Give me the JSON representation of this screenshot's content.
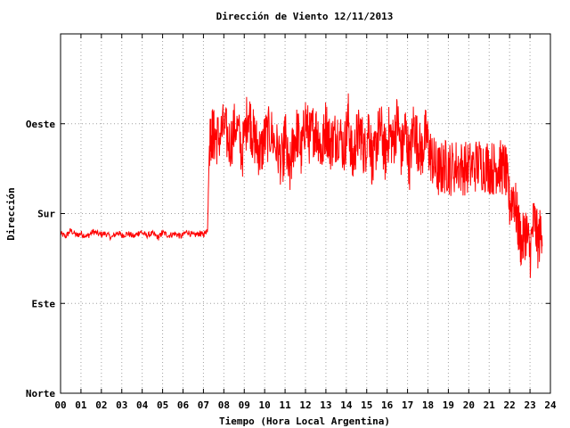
{
  "chart_data": {
    "type": "line",
    "title": "Dirección de Viento 12/11/2013",
    "xlabel": "Tiempo (Hora Local Argentina)",
    "ylabel": "Dirección",
    "x_ticks": [
      "00",
      "01",
      "02",
      "03",
      "04",
      "05",
      "06",
      "07",
      "08",
      "09",
      "10",
      "11",
      "12",
      "13",
      "14",
      "15",
      "16",
      "17",
      "18",
      "19",
      "20",
      "21",
      "22",
      "23",
      "24"
    ],
    "xlim": [
      0,
      24
    ],
    "y_ticks": [
      {
        "label": "Norte",
        "value": 0
      },
      {
        "label": "Este",
        "value": 90
      },
      {
        "label": "Sur",
        "value": 180
      },
      {
        "label": "Oeste",
        "value": 270
      }
    ],
    "ylim": [
      0,
      360
    ],
    "grid": true,
    "legend": "none",
    "series": [
      {
        "color": "#ff0000",
        "x": [
          0.0,
          0.25,
          0.5,
          0.8,
          1.0,
          1.3,
          1.6,
          1.9,
          2.2,
          2.5,
          2.8,
          3.0,
          3.3,
          3.6,
          3.9,
          4.2,
          4.5,
          4.8,
          5.0,
          5.3,
          5.6,
          5.9,
          6.2,
          6.5,
          6.8,
          7.0,
          7.2,
          7.3,
          7.4,
          7.5,
          7.7,
          8.0,
          8.3,
          8.6,
          8.9,
          9.2,
          9.4,
          9.6,
          9.8,
          10.0,
          10.3,
          10.6,
          10.9,
          11.0,
          11.2,
          11.4,
          11.6,
          11.8,
          12.0,
          12.2,
          12.4,
          12.6,
          12.8,
          13.0,
          13.2,
          13.4,
          13.6,
          13.9,
          14.1,
          14.3,
          14.5,
          14.7,
          14.9,
          15.1,
          15.3,
          15.5,
          15.7,
          15.9,
          16.1,
          16.3,
          16.5,
          16.7,
          16.9,
          17.1,
          17.3,
          17.5,
          17.7,
          17.9,
          18.1,
          18.3,
          18.5,
          18.7,
          18.9,
          19.1,
          19.4,
          19.7,
          20.0,
          20.3,
          20.6,
          20.9,
          21.2,
          21.4,
          21.6,
          21.8,
          22.0,
          22.2,
          22.4,
          22.6,
          22.8,
          23.0,
          23.2,
          23.4,
          23.6
        ],
        "y": [
          160,
          157,
          163,
          158,
          160,
          157,
          162,
          159,
          160,
          156,
          161,
          158,
          160,
          157,
          162,
          158,
          160,
          156,
          161,
          158,
          160,
          157,
          162,
          158,
          160,
          159,
          164,
          255,
          262,
          258,
          255,
          265,
          250,
          270,
          240,
          285,
          260,
          250,
          240,
          255,
          262,
          245,
          230,
          260,
          215,
          250,
          262,
          240,
          275,
          255,
          265,
          262,
          240,
          270,
          250,
          255,
          262,
          245,
          275,
          230,
          255,
          262,
          240,
          270,
          225,
          255,
          265,
          238,
          262,
          250,
          275,
          240,
          265,
          230,
          270,
          250,
          240,
          260,
          240,
          230,
          222,
          225,
          228,
          225,
          228,
          226,
          225,
          228,
          230,
          228,
          225,
          228,
          226,
          224,
          190,
          200,
          170,
          148,
          165,
          140,
          175,
          150,
          170
        ]
      }
    ]
  }
}
